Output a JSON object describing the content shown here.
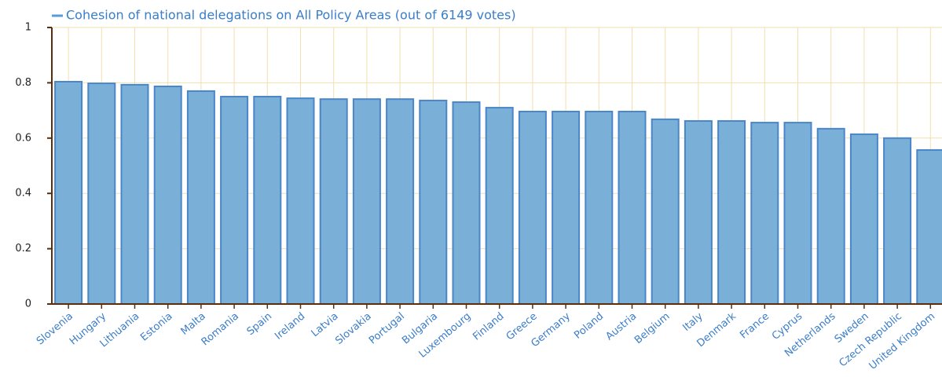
{
  "chart_data": {
    "type": "bar",
    "title": "Cohesion of national delegations on All Policy Areas (out of 6149 votes)",
    "categories": [
      "Slovenia",
      "Hungary",
      "Lithuania",
      "Estonia",
      "Malta",
      "Romania",
      "Spain",
      "Ireland",
      "Latvia",
      "Slovakia",
      "Portugal",
      "Bulgaria",
      "Luxembourg",
      "Finland",
      "Greece",
      "Germany",
      "Poland",
      "Austria",
      "Belgium",
      "Italy",
      "Denmark",
      "France",
      "Cyprus",
      "Netherlands",
      "Sweden",
      "Czech Republic",
      "United Kingdom"
    ],
    "values": [
      0.804,
      0.798,
      0.793,
      0.787,
      0.77,
      0.75,
      0.75,
      0.744,
      0.741,
      0.741,
      0.741,
      0.736,
      0.73,
      0.71,
      0.696,
      0.696,
      0.696,
      0.696,
      0.668,
      0.662,
      0.662,
      0.656,
      0.656,
      0.634,
      0.614,
      0.6,
      0.557
    ],
    "color": "#7ab0d8",
    "ylim": [
      0,
      1
    ],
    "yticks": [
      0,
      0.2,
      0.4,
      0.6,
      0.8,
      1
    ],
    "grid": true
  }
}
